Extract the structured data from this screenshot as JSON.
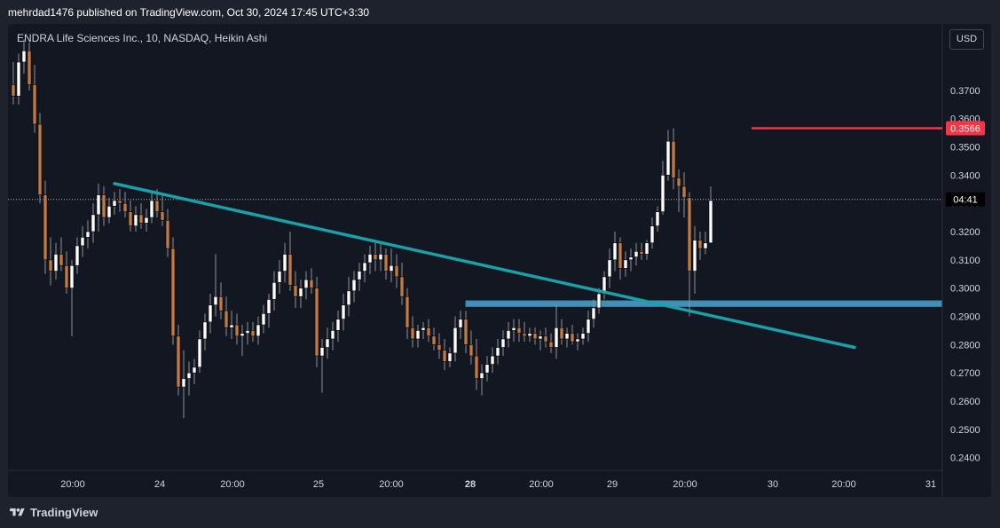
{
  "header": {
    "publisher_line": "mehrdad1476 published on TradingView.com, Oct 30, 2024 17:45 UTC+3:30"
  },
  "footer": {
    "brand": "TradingView"
  },
  "chart_data": {
    "type": "candlestick",
    "title": "ENDRA Life Sciences Inc., 10, NASDAQ, Heikin Ashi",
    "currency": "USD",
    "ylim": [
      0.2355,
      0.3935
    ],
    "y_ticks": [
      0.24,
      0.25,
      0.26,
      0.27,
      0.28,
      0.29,
      0.3,
      0.31,
      0.32,
      0.33,
      0.34,
      0.35,
      0.36,
      0.37
    ],
    "y_tick_labels": [
      "0.2400",
      "0.2500",
      "0.2600",
      "0.2700",
      "0.2800",
      "0.2900",
      "0.3000",
      "0.3100",
      "0.3200",
      "0.3300",
      "0.3400",
      "0.3500",
      "0.3600",
      "0.3700"
    ],
    "x_ticks": [
      {
        "label": "20:00",
        "bold": false
      },
      {
        "label": "24",
        "bold": false
      },
      {
        "label": "20:00",
        "bold": false
      },
      {
        "label": "25",
        "bold": false
      },
      {
        "label": "20:00",
        "bold": false
      },
      {
        "label": "28",
        "bold": true
      },
      {
        "label": "20:00",
        "bold": false
      },
      {
        "label": "29",
        "bold": false
      },
      {
        "label": "20:00",
        "bold": false
      },
      {
        "label": "30",
        "bold": false
      },
      {
        "label": "20:00",
        "bold": false
      },
      {
        "label": "31",
        "bold": false
      }
    ],
    "current_price": 0.3566,
    "current_price_label": "0.3566",
    "countdown_price": 0.3314,
    "countdown_label": "04:41",
    "colors": {
      "up": "#ffffff",
      "down": "#c27b3d",
      "wick": "#8e9199",
      "trendline": "#1aa0a8",
      "zone": "#5ab8e0",
      "resistance": "#f23645"
    },
    "candles": [
      {
        "o": 0.372,
        "h": 0.38,
        "l": 0.365,
        "c": 0.368
      },
      {
        "o": 0.368,
        "h": 0.383,
        "l": 0.365,
        "c": 0.38
      },
      {
        "o": 0.38,
        "h": 0.388,
        "l": 0.376,
        "c": 0.384
      },
      {
        "o": 0.384,
        "h": 0.387,
        "l": 0.37,
        "c": 0.372
      },
      {
        "o": 0.372,
        "h": 0.379,
        "l": 0.355,
        "c": 0.358
      },
      {
        "o": 0.358,
        "h": 0.362,
        "l": 0.33,
        "c": 0.333
      },
      {
        "o": 0.333,
        "h": 0.338,
        "l": 0.305,
        "c": 0.31
      },
      {
        "o": 0.31,
        "h": 0.318,
        "l": 0.301,
        "c": 0.306
      },
      {
        "o": 0.306,
        "h": 0.316,
        "l": 0.303,
        "c": 0.312
      },
      {
        "o": 0.312,
        "h": 0.318,
        "l": 0.306,
        "c": 0.308
      },
      {
        "o": 0.308,
        "h": 0.313,
        "l": 0.298,
        "c": 0.3
      },
      {
        "o": 0.3,
        "h": 0.31,
        "l": 0.283,
        "c": 0.308
      },
      {
        "o": 0.308,
        "h": 0.318,
        "l": 0.305,
        "c": 0.315
      },
      {
        "o": 0.315,
        "h": 0.322,
        "l": 0.311,
        "c": 0.318
      },
      {
        "o": 0.318,
        "h": 0.324,
        "l": 0.314,
        "c": 0.32
      },
      {
        "o": 0.32,
        "h": 0.33,
        "l": 0.316,
        "c": 0.326
      },
      {
        "o": 0.326,
        "h": 0.337,
        "l": 0.32,
        "c": 0.333
      },
      {
        "o": 0.333,
        "h": 0.336,
        "l": 0.322,
        "c": 0.325
      },
      {
        "o": 0.325,
        "h": 0.332,
        "l": 0.323,
        "c": 0.329
      },
      {
        "o": 0.329,
        "h": 0.334,
        "l": 0.326,
        "c": 0.331
      },
      {
        "o": 0.331,
        "h": 0.335,
        "l": 0.327,
        "c": 0.33
      },
      {
        "o": 0.33,
        "h": 0.334,
        "l": 0.325,
        "c": 0.327
      },
      {
        "o": 0.327,
        "h": 0.331,
        "l": 0.32,
        "c": 0.322
      },
      {
        "o": 0.322,
        "h": 0.329,
        "l": 0.32,
        "c": 0.326
      },
      {
        "o": 0.326,
        "h": 0.33,
        "l": 0.321,
        "c": 0.323
      },
      {
        "o": 0.323,
        "h": 0.328,
        "l": 0.32,
        "c": 0.325
      },
      {
        "o": 0.325,
        "h": 0.334,
        "l": 0.323,
        "c": 0.331
      },
      {
        "o": 0.331,
        "h": 0.335,
        "l": 0.325,
        "c": 0.327
      },
      {
        "o": 0.327,
        "h": 0.333,
        "l": 0.322,
        "c": 0.324
      },
      {
        "o": 0.324,
        "h": 0.328,
        "l": 0.311,
        "c": 0.314
      },
      {
        "o": 0.314,
        "h": 0.318,
        "l": 0.28,
        "c": 0.283
      },
      {
        "o": 0.283,
        "h": 0.287,
        "l": 0.262,
        "c": 0.265
      },
      {
        "o": 0.265,
        "h": 0.278,
        "l": 0.254,
        "c": 0.268
      },
      {
        "o": 0.268,
        "h": 0.274,
        "l": 0.262,
        "c": 0.27
      },
      {
        "o": 0.27,
        "h": 0.275,
        "l": 0.266,
        "c": 0.272
      },
      {
        "o": 0.272,
        "h": 0.285,
        "l": 0.27,
        "c": 0.282
      },
      {
        "o": 0.282,
        "h": 0.291,
        "l": 0.278,
        "c": 0.288
      },
      {
        "o": 0.288,
        "h": 0.298,
        "l": 0.284,
        "c": 0.294
      },
      {
        "o": 0.294,
        "h": 0.312,
        "l": 0.29,
        "c": 0.297
      },
      {
        "o": 0.297,
        "h": 0.302,
        "l": 0.289,
        "c": 0.292
      },
      {
        "o": 0.292,
        "h": 0.297,
        "l": 0.283,
        "c": 0.286
      },
      {
        "o": 0.286,
        "h": 0.292,
        "l": 0.282,
        "c": 0.287
      },
      {
        "o": 0.287,
        "h": 0.291,
        "l": 0.28,
        "c": 0.283
      },
      {
        "o": 0.283,
        "h": 0.287,
        "l": 0.276,
        "c": 0.284
      },
      {
        "o": 0.284,
        "h": 0.288,
        "l": 0.28,
        "c": 0.285
      },
      {
        "o": 0.285,
        "h": 0.288,
        "l": 0.281,
        "c": 0.283
      },
      {
        "o": 0.283,
        "h": 0.29,
        "l": 0.28,
        "c": 0.287
      },
      {
        "o": 0.287,
        "h": 0.294,
        "l": 0.284,
        "c": 0.291
      },
      {
        "o": 0.291,
        "h": 0.298,
        "l": 0.286,
        "c": 0.296
      },
      {
        "o": 0.296,
        "h": 0.306,
        "l": 0.292,
        "c": 0.302
      },
      {
        "o": 0.302,
        "h": 0.31,
        "l": 0.298,
        "c": 0.306
      },
      {
        "o": 0.306,
        "h": 0.316,
        "l": 0.302,
        "c": 0.312
      },
      {
        "o": 0.312,
        "h": 0.32,
        "l": 0.299,
        "c": 0.301
      },
      {
        "o": 0.301,
        "h": 0.306,
        "l": 0.293,
        "c": 0.297
      },
      {
        "o": 0.297,
        "h": 0.303,
        "l": 0.293,
        "c": 0.3
      },
      {
        "o": 0.3,
        "h": 0.306,
        "l": 0.296,
        "c": 0.303
      },
      {
        "o": 0.303,
        "h": 0.307,
        "l": 0.298,
        "c": 0.3
      },
      {
        "o": 0.3,
        "h": 0.304,
        "l": 0.272,
        "c": 0.276
      },
      {
        "o": 0.276,
        "h": 0.282,
        "l": 0.263,
        "c": 0.279
      },
      {
        "o": 0.279,
        "h": 0.286,
        "l": 0.275,
        "c": 0.282
      },
      {
        "o": 0.282,
        "h": 0.288,
        "l": 0.278,
        "c": 0.285
      },
      {
        "o": 0.285,
        "h": 0.292,
        "l": 0.281,
        "c": 0.289
      },
      {
        "o": 0.289,
        "h": 0.298,
        "l": 0.285,
        "c": 0.294
      },
      {
        "o": 0.294,
        "h": 0.304,
        "l": 0.29,
        "c": 0.299
      },
      {
        "o": 0.299,
        "h": 0.306,
        "l": 0.295,
        "c": 0.303
      },
      {
        "o": 0.303,
        "h": 0.309,
        "l": 0.299,
        "c": 0.306
      },
      {
        "o": 0.306,
        "h": 0.312,
        "l": 0.302,
        "c": 0.309
      },
      {
        "o": 0.309,
        "h": 0.315,
        "l": 0.305,
        "c": 0.312
      },
      {
        "o": 0.312,
        "h": 0.317,
        "l": 0.306,
        "c": 0.31
      },
      {
        "o": 0.31,
        "h": 0.316,
        "l": 0.306,
        "c": 0.312
      },
      {
        "o": 0.312,
        "h": 0.314,
        "l": 0.303,
        "c": 0.306
      },
      {
        "o": 0.306,
        "h": 0.314,
        "l": 0.302,
        "c": 0.308
      },
      {
        "o": 0.308,
        "h": 0.312,
        "l": 0.3,
        "c": 0.304
      },
      {
        "o": 0.304,
        "h": 0.309,
        "l": 0.294,
        "c": 0.297
      },
      {
        "o": 0.297,
        "h": 0.3,
        "l": 0.282,
        "c": 0.286
      },
      {
        "o": 0.286,
        "h": 0.29,
        "l": 0.279,
        "c": 0.282
      },
      {
        "o": 0.282,
        "h": 0.287,
        "l": 0.279,
        "c": 0.285
      },
      {
        "o": 0.285,
        "h": 0.288,
        "l": 0.282,
        "c": 0.286
      },
      {
        "o": 0.286,
        "h": 0.289,
        "l": 0.281,
        "c": 0.283
      },
      {
        "o": 0.283,
        "h": 0.286,
        "l": 0.278,
        "c": 0.28
      },
      {
        "o": 0.28,
        "h": 0.284,
        "l": 0.275,
        "c": 0.278
      },
      {
        "o": 0.278,
        "h": 0.282,
        "l": 0.271,
        "c": 0.274
      },
      {
        "o": 0.274,
        "h": 0.279,
        "l": 0.272,
        "c": 0.277
      },
      {
        "o": 0.277,
        "h": 0.29,
        "l": 0.274,
        "c": 0.286
      },
      {
        "o": 0.286,
        "h": 0.292,
        "l": 0.282,
        "c": 0.289
      },
      {
        "o": 0.289,
        "h": 0.292,
        "l": 0.277,
        "c": 0.28
      },
      {
        "o": 0.28,
        "h": 0.285,
        "l": 0.273,
        "c": 0.276
      },
      {
        "o": 0.276,
        "h": 0.282,
        "l": 0.264,
        "c": 0.268
      },
      {
        "o": 0.268,
        "h": 0.273,
        "l": 0.262,
        "c": 0.27
      },
      {
        "o": 0.27,
        "h": 0.276,
        "l": 0.267,
        "c": 0.273
      },
      {
        "o": 0.273,
        "h": 0.279,
        "l": 0.27,
        "c": 0.276
      },
      {
        "o": 0.276,
        "h": 0.282,
        "l": 0.273,
        "c": 0.279
      },
      {
        "o": 0.279,
        "h": 0.285,
        "l": 0.276,
        "c": 0.282
      },
      {
        "o": 0.282,
        "h": 0.288,
        "l": 0.279,
        "c": 0.285
      },
      {
        "o": 0.285,
        "h": 0.289,
        "l": 0.281,
        "c": 0.286
      },
      {
        "o": 0.286,
        "h": 0.289,
        "l": 0.281,
        "c": 0.284
      },
      {
        "o": 0.284,
        "h": 0.288,
        "l": 0.281,
        "c": 0.283
      },
      {
        "o": 0.283,
        "h": 0.286,
        "l": 0.281,
        "c": 0.284
      },
      {
        "o": 0.284,
        "h": 0.286,
        "l": 0.28,
        "c": 0.282
      },
      {
        "o": 0.282,
        "h": 0.285,
        "l": 0.278,
        "c": 0.283
      },
      {
        "o": 0.283,
        "h": 0.286,
        "l": 0.279,
        "c": 0.281
      },
      {
        "o": 0.281,
        "h": 0.284,
        "l": 0.277,
        "c": 0.279
      },
      {
        "o": 0.279,
        "h": 0.294,
        "l": 0.275,
        "c": 0.286
      },
      {
        "o": 0.286,
        "h": 0.289,
        "l": 0.28,
        "c": 0.282
      },
      {
        "o": 0.282,
        "h": 0.286,
        "l": 0.279,
        "c": 0.284
      },
      {
        "o": 0.284,
        "h": 0.287,
        "l": 0.28,
        "c": 0.281
      },
      {
        "o": 0.281,
        "h": 0.284,
        "l": 0.278,
        "c": 0.282
      },
      {
        "o": 0.282,
        "h": 0.286,
        "l": 0.28,
        "c": 0.284
      },
      {
        "o": 0.284,
        "h": 0.292,
        "l": 0.281,
        "c": 0.289
      },
      {
        "o": 0.289,
        "h": 0.296,
        "l": 0.286,
        "c": 0.293
      },
      {
        "o": 0.293,
        "h": 0.3,
        "l": 0.291,
        "c": 0.298
      },
      {
        "o": 0.298,
        "h": 0.306,
        "l": 0.296,
        "c": 0.304
      },
      {
        "o": 0.304,
        "h": 0.314,
        "l": 0.3,
        "c": 0.31
      },
      {
        "o": 0.31,
        "h": 0.32,
        "l": 0.306,
        "c": 0.316
      },
      {
        "o": 0.316,
        "h": 0.318,
        "l": 0.303,
        "c": 0.307
      },
      {
        "o": 0.307,
        "h": 0.313,
        "l": 0.304,
        "c": 0.31
      },
      {
        "o": 0.31,
        "h": 0.314,
        "l": 0.306,
        "c": 0.311
      },
      {
        "o": 0.311,
        "h": 0.316,
        "l": 0.308,
        "c": 0.313
      },
      {
        "o": 0.313,
        "h": 0.316,
        "l": 0.31,
        "c": 0.312
      },
      {
        "o": 0.312,
        "h": 0.317,
        "l": 0.31,
        "c": 0.316
      },
      {
        "o": 0.316,
        "h": 0.325,
        "l": 0.314,
        "c": 0.322
      },
      {
        "o": 0.322,
        "h": 0.329,
        "l": 0.32,
        "c": 0.327
      },
      {
        "o": 0.327,
        "h": 0.345,
        "l": 0.326,
        "c": 0.34
      },
      {
        "o": 0.34,
        "h": 0.356,
        "l": 0.338,
        "c": 0.352
      },
      {
        "o": 0.352,
        "h": 0.3566,
        "l": 0.335,
        "c": 0.339
      },
      {
        "o": 0.339,
        "h": 0.342,
        "l": 0.327,
        "c": 0.336
      },
      {
        "o": 0.336,
        "h": 0.341,
        "l": 0.325,
        "c": 0.332
      },
      {
        "o": 0.332,
        "h": 0.334,
        "l": 0.29,
        "c": 0.306
      },
      {
        "o": 0.306,
        "h": 0.322,
        "l": 0.298,
        "c": 0.317
      },
      {
        "o": 0.317,
        "h": 0.32,
        "l": 0.31,
        "c": 0.314
      },
      {
        "o": 0.314,
        "h": 0.32,
        "l": 0.312,
        "c": 0.316
      },
      {
        "o": 0.316,
        "h": 0.336,
        "l": 0.316,
        "c": 0.331
      }
    ],
    "trendline": {
      "start": {
        "index": 12,
        "price": 0.337
      },
      "end": {
        "index": 136,
        "price": 0.279
      }
    },
    "zone": {
      "from_index": 85,
      "to_index": 160,
      "top": 0.2955,
      "bottom": 0.2935
    },
    "resistance": {
      "from_index": 126,
      "to_index": 160,
      "price": 0.3566
    }
  }
}
